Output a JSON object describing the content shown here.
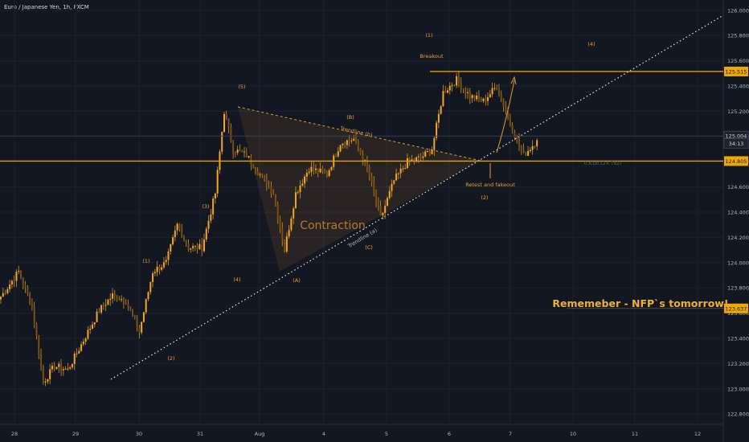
{
  "chart_data": {
    "type": "candlestick",
    "title": "Euro / Japanese Yen, 1h, FXCM",
    "ylim": [
      122.75,
      126.05
    ],
    "y_ticks": [
      "126.000",
      "125.800",
      "125.600",
      "125.400",
      "125.200",
      "125.000",
      "124.800",
      "124.600",
      "124.400",
      "124.200",
      "124.000",
      "123.800",
      "123.600",
      "123.400",
      "123.200",
      "123.000",
      "122.800"
    ],
    "y_tick_values": [
      126.0,
      125.8,
      125.6,
      125.4,
      125.2,
      125.0,
      124.8,
      124.6,
      124.4,
      124.2,
      124.0,
      123.8,
      123.6,
      123.4,
      123.2,
      123.0,
      122.8
    ],
    "x_ticks": [
      "28",
      "29",
      "30",
      "31",
      "Aug",
      "4",
      "5",
      "6",
      "7",
      "10",
      "11",
      "12"
    ],
    "price_tags": [
      {
        "label": "125.515",
        "value": 125.515,
        "style": "gold"
      },
      {
        "label": "125.004",
        "value": 125.004,
        "style": "dark"
      },
      {
        "label": "34:13",
        "value": 124.945,
        "style": "dark"
      },
      {
        "label": "124.805",
        "value": 124.805,
        "style": "gold"
      },
      {
        "label": "123.637",
        "value": 123.637,
        "style": "gold"
      }
    ],
    "annotations": {
      "wave_labels": [
        "(1)",
        "(2)",
        "(3)",
        "(4)",
        "(5)",
        "(A)",
        "(B)",
        "(C)",
        "(1)",
        "(2)",
        "(4)"
      ],
      "breakout": "Breakout",
      "trendline_b": "Trendline (b)",
      "trendline_a": "Trendline (a)",
      "contraction": "Contraction",
      "retest": "Retest and fakeout",
      "fib": "0.618(124.782)",
      "reminder": "Rememeber - NFP`s tomorrow!"
    },
    "levels": [
      125.515,
      124.805
    ],
    "anchors": [
      [
        0,
        123.73
      ],
      [
        8,
        123.93
      ],
      [
        14,
        123.65
      ],
      [
        19,
        123.05
      ],
      [
        24,
        123.18
      ],
      [
        30,
        123.15
      ],
      [
        36,
        123.35
      ],
      [
        44,
        123.62
      ],
      [
        50,
        123.74
      ],
      [
        56,
        123.7
      ],
      [
        62,
        123.45
      ],
      [
        68,
        123.93
      ],
      [
        74,
        124.0
      ],
      [
        79,
        124.3
      ],
      [
        84,
        124.12
      ],
      [
        90,
        124.12
      ],
      [
        96,
        124.55
      ],
      [
        100,
        125.2
      ],
      [
        104,
        124.9
      ],
      [
        110,
        124.85
      ],
      [
        116,
        124.7
      ],
      [
        122,
        124.55
      ],
      [
        127,
        124.1
      ],
      [
        132,
        124.55
      ],
      [
        138,
        124.75
      ],
      [
        146,
        124.7
      ],
      [
        152,
        124.95
      ],
      [
        158,
        124.98
      ],
      [
        164,
        124.75
      ],
      [
        170,
        124.35
      ],
      [
        176,
        124.65
      ],
      [
        182,
        124.8
      ],
      [
        188,
        124.83
      ],
      [
        193,
        124.9
      ],
      [
        198,
        125.35
      ],
      [
        204,
        125.45
      ],
      [
        210,
        125.32
      ],
      [
        216,
        125.28
      ],
      [
        222,
        125.4
      ],
      [
        228,
        125.1
      ],
      [
        234,
        124.85
      ],
      [
        240,
        124.97
      ]
    ]
  }
}
